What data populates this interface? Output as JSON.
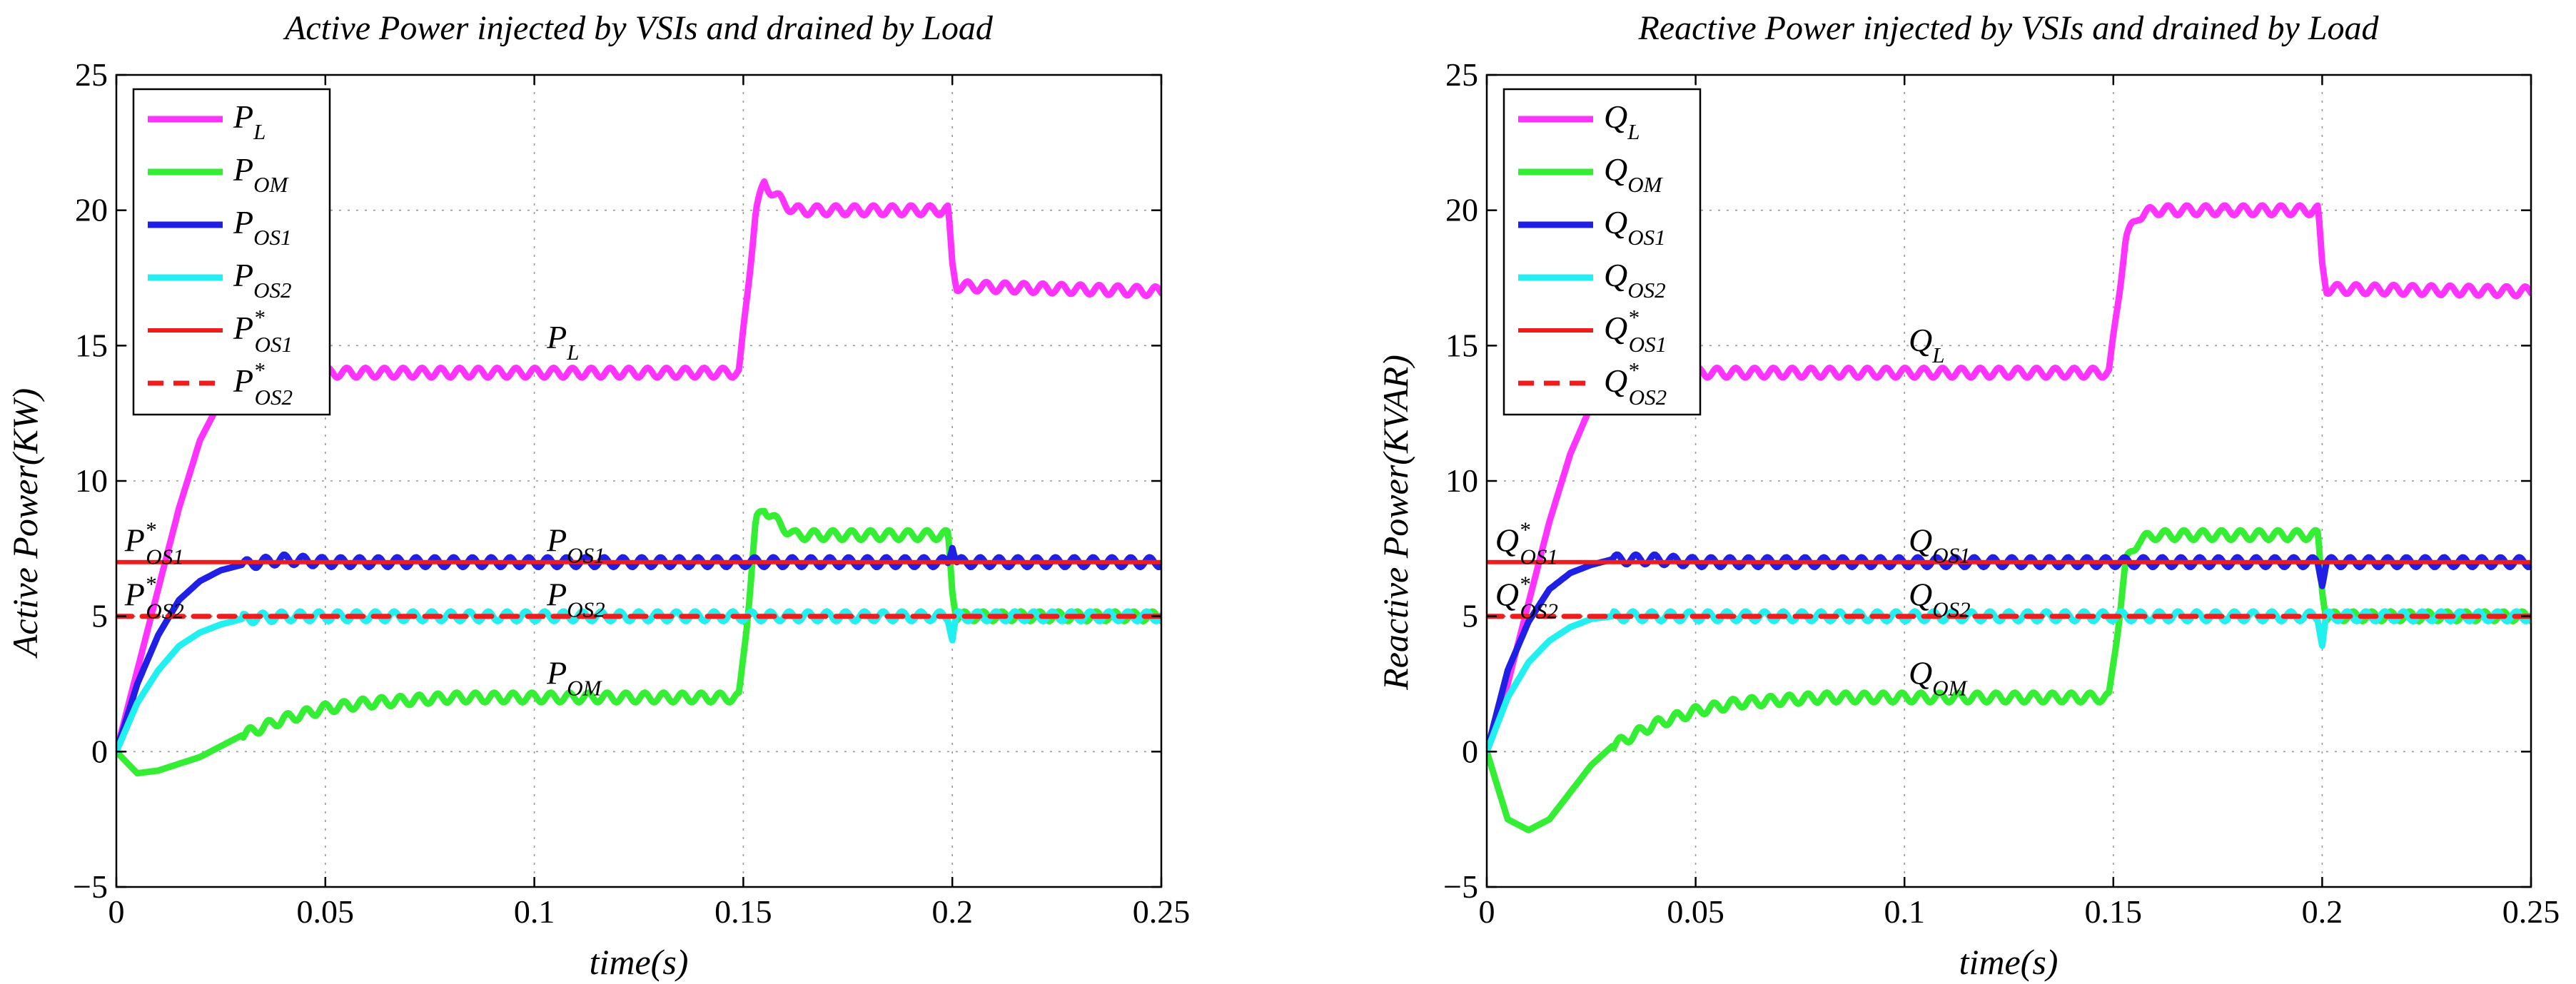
{
  "chart_data": [
    {
      "type": "line",
      "title": "Active Power injected by VSIs and drained by Load",
      "xlabel": "time(s)",
      "ylabel": "Active Power(KW)",
      "xlim": [
        0,
        0.25
      ],
      "ylim": [
        -5,
        25
      ],
      "xticks": [
        "0",
        "0.05",
        "0.1",
        "0.15",
        "0.2",
        "0.25"
      ],
      "yticks": [
        "-5",
        "0",
        "5",
        "10",
        "15",
        "20",
        "25"
      ],
      "grid": true,
      "legend_position": "top-left",
      "series": [
        {
          "name": "P_L",
          "label_base": "P",
          "label_sub": "L",
          "label_sup": "",
          "color": "#ff33ff",
          "dash": "solid",
          "x": [
            0,
            0.005,
            0.01,
            0.015,
            0.02,
            0.025,
            0.03,
            0.04,
            0.05,
            0.1,
            0.149,
            0.151,
            0.153,
            0.155,
            0.158,
            0.162,
            0.17,
            0.199,
            0.2,
            0.201,
            0.25
          ],
          "y": [
            0,
            3,
            6,
            9,
            11.5,
            13,
            13.8,
            13.9,
            14,
            14,
            14,
            17,
            20,
            21,
            20.5,
            20,
            20,
            20,
            18,
            17.2,
            17
          ]
        },
        {
          "name": "P_OM",
          "label_base": "P",
          "label_sub": "OM",
          "label_sup": "",
          "color": "#33ee33",
          "dash": "solid",
          "x": [
            0,
            0.005,
            0.01,
            0.02,
            0.03,
            0.04,
            0.05,
            0.06,
            0.08,
            0.1,
            0.149,
            0.151,
            0.153,
            0.155,
            0.158,
            0.162,
            0.17,
            0.199,
            0.2,
            0.201,
            0.25
          ],
          "y": [
            0,
            -0.8,
            -0.7,
            -0.2,
            0.6,
            1.2,
            1.6,
            1.8,
            2,
            2,
            2,
            5,
            8.5,
            9,
            8.5,
            8,
            8,
            8,
            6,
            5,
            5
          ]
        },
        {
          "name": "P_OS1",
          "label_base": "P",
          "label_sub": "OS1",
          "label_sup": "",
          "color": "#1f1fe6",
          "dash": "solid",
          "x": [
            0,
            0.005,
            0.01,
            0.015,
            0.02,
            0.025,
            0.03,
            0.035,
            0.04,
            0.05,
            0.1,
            0.15,
            0.199,
            0.2,
            0.201,
            0.25
          ],
          "y": [
            0,
            2.5,
            4.3,
            5.6,
            6.3,
            6.7,
            6.9,
            7,
            7.1,
            7,
            7,
            7,
            7,
            7.7,
            7,
            7
          ]
        },
        {
          "name": "P_OS2",
          "label_base": "P",
          "label_sub": "OS2",
          "label_sup": "",
          "color": "#22f0f0",
          "dash": "solid",
          "x": [
            0,
            0.005,
            0.01,
            0.015,
            0.02,
            0.025,
            0.03,
            0.04,
            0.05,
            0.1,
            0.15,
            0.199,
            0.2,
            0.201,
            0.25
          ],
          "y": [
            0,
            1.8,
            3,
            3.9,
            4.4,
            4.7,
            4.9,
            5,
            5,
            5,
            5,
            5,
            4.2,
            5,
            5
          ]
        },
        {
          "name": "P*_OS1",
          "label_base": "P",
          "label_sub": "OS1",
          "label_sup": "*",
          "color": "#ee1c1c",
          "dash": "solid",
          "x": [
            0,
            0.25
          ],
          "y": [
            7,
            7
          ]
        },
        {
          "name": "P*_OS2",
          "label_base": "P",
          "label_sub": "OS2",
          "label_sup": "*",
          "color": "#ee1c1c",
          "dash": "dashed",
          "x": [
            0,
            0.25
          ],
          "y": [
            5,
            5
          ]
        }
      ],
      "annotations": [
        {
          "base": "P",
          "sub": "L",
          "sup": "",
          "x": 0.103,
          "y": 14.9
        },
        {
          "base": "P",
          "sub": "OS1",
          "sup": "",
          "x": 0.103,
          "y": 7.4
        },
        {
          "base": "P",
          "sub": "OS2",
          "sup": "",
          "x": 0.103,
          "y": 5.4
        },
        {
          "base": "P",
          "sub": "OM",
          "sup": "",
          "x": 0.103,
          "y": 2.5
        },
        {
          "base": "P",
          "sub": "OS1",
          "sup": "*",
          "x": 0.002,
          "y": 7.4
        },
        {
          "base": "P",
          "sub": "OS2",
          "sup": "*",
          "x": 0.002,
          "y": 5.4
        }
      ]
    },
    {
      "type": "line",
      "title": "Reactive Power injected by VSIs and drained by Load",
      "xlabel": "time(s)",
      "ylabel": "Reactive Power(KVAR)",
      "xlim": [
        0,
        0.25
      ],
      "ylim": [
        -5,
        25
      ],
      "xticks": [
        "0",
        "0.05",
        "0.1",
        "0.15",
        "0.2",
        "0.25"
      ],
      "yticks": [
        "-5",
        "0",
        "5",
        "10",
        "15",
        "20",
        "25"
      ],
      "grid": true,
      "legend_position": "top-left",
      "series": [
        {
          "name": "Q_L",
          "label_base": "Q",
          "label_sub": "L",
          "label_sup": "",
          "color": "#ff33ff",
          "dash": "solid",
          "x": [
            0,
            0.005,
            0.01,
            0.015,
            0.02,
            0.025,
            0.03,
            0.04,
            0.05,
            0.1,
            0.149,
            0.151,
            0.153,
            0.156,
            0.16,
            0.17,
            0.199,
            0.2,
            0.201,
            0.25
          ],
          "y": [
            0,
            2.5,
            5.5,
            8.5,
            11,
            12.8,
            13.6,
            13.9,
            14,
            14,
            14,
            16.5,
            19,
            19.8,
            20,
            20,
            20,
            18,
            17.1,
            17
          ]
        },
        {
          "name": "Q_OM",
          "label_base": "Q",
          "label_sub": "OM",
          "label_sup": "",
          "color": "#33ee33",
          "dash": "solid",
          "x": [
            0,
            0.005,
            0.01,
            0.015,
            0.02,
            0.025,
            0.03,
            0.04,
            0.05,
            0.06,
            0.08,
            0.1,
            0.149,
            0.151,
            0.153,
            0.156,
            0.16,
            0.17,
            0.199,
            0.2,
            0.201,
            0.25
          ],
          "y": [
            0,
            -2.5,
            -2.9,
            -2.5,
            -1.5,
            -0.5,
            0.2,
            1,
            1.5,
            1.8,
            2,
            2,
            2,
            4.5,
            7,
            7.8,
            8,
            8,
            8,
            6,
            5,
            5
          ]
        },
        {
          "name": "Q_OS1",
          "label_base": "Q",
          "label_sub": "OS1",
          "label_sup": "",
          "color": "#1f1fe6",
          "dash": "solid",
          "x": [
            0,
            0.005,
            0.01,
            0.015,
            0.02,
            0.025,
            0.03,
            0.04,
            0.05,
            0.1,
            0.15,
            0.199,
            0.2,
            0.201,
            0.25
          ],
          "y": [
            0,
            3,
            4.8,
            6,
            6.6,
            6.9,
            7.1,
            7.1,
            7,
            7,
            7,
            7,
            6.3,
            7,
            7
          ]
        },
        {
          "name": "Q_OS2",
          "label_base": "Q",
          "label_sub": "OS2",
          "label_sup": "",
          "color": "#22f0f0",
          "dash": "solid",
          "x": [
            0,
            0.005,
            0.01,
            0.015,
            0.02,
            0.025,
            0.03,
            0.04,
            0.05,
            0.1,
            0.15,
            0.199,
            0.2,
            0.201,
            0.25
          ],
          "y": [
            0,
            2,
            3.3,
            4.1,
            4.6,
            4.9,
            5,
            5,
            5,
            5,
            5,
            5,
            4,
            5,
            5
          ]
        },
        {
          "name": "Q*_OS1",
          "label_base": "Q",
          "label_sub": "OS1",
          "label_sup": "*",
          "color": "#ee1c1c",
          "dash": "solid",
          "x": [
            0,
            0.25
          ],
          "y": [
            7,
            7
          ]
        },
        {
          "name": "Q*_OS2",
          "label_base": "Q",
          "label_sub": "OS2",
          "label_sup": "*",
          "color": "#ee1c1c",
          "dash": "dashed",
          "x": [
            0,
            0.25
          ],
          "y": [
            5,
            5
          ]
        }
      ],
      "annotations": [
        {
          "base": "Q",
          "sub": "L",
          "sup": "",
          "x": 0.101,
          "y": 14.8
        },
        {
          "base": "Q",
          "sub": "OS1",
          "sup": "",
          "x": 0.101,
          "y": 7.4
        },
        {
          "base": "Q",
          "sub": "OS2",
          "sup": "",
          "x": 0.101,
          "y": 5.4
        },
        {
          "base": "Q",
          "sub": "OM",
          "sup": "",
          "x": 0.101,
          "y": 2.5
        },
        {
          "base": "Q",
          "sub": "OS1",
          "sup": "*",
          "x": 0.002,
          "y": 7.4
        },
        {
          "base": "Q",
          "sub": "OS2",
          "sup": "*",
          "x": 0.002,
          "y": 5.4
        }
      ]
    }
  ]
}
